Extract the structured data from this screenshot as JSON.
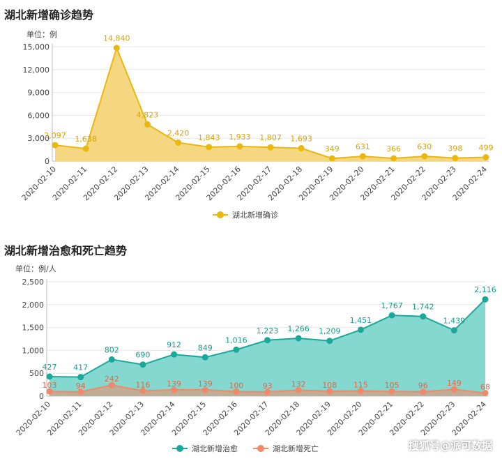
{
  "charts": [
    {
      "title": "湖北新增确诊趋势",
      "unit": "单位：例",
      "chart_data": {
        "type": "area",
        "categories": [
          "2020-02-10",
          "2020-02-11",
          "2020-02-12",
          "2020-02-13",
          "2020-02-14",
          "2020-02-15",
          "2020-02-16",
          "2020-02-17",
          "2020-02-18",
          "2020-02-19",
          "2020-02-20",
          "2020-02-21",
          "2020-02-22",
          "2020-02-23",
          "2020-02-24"
        ],
        "yticks": [
          0,
          3000,
          6000,
          9000,
          12000,
          15000
        ],
        "ytick_labels": [
          "0",
          "3,000",
          "6,000",
          "9,000",
          "12,000",
          "15,000"
        ],
        "ylim": [
          0,
          15000
        ],
        "series": [
          {
            "name": "湖北新增确诊",
            "values": [
              2097,
              1638,
              14840,
              4823,
              2420,
              1843,
              1933,
              1807,
              1693,
              349,
              631,
              366,
              630,
              398,
              499
            ],
            "labels": [
              "2,097",
              "1,638",
              "14,840",
              "4,823",
              "2,420",
              "1,843",
              "1,933",
              "1,807",
              "1,693",
              "349",
              "631",
              "366",
              "630",
              "398",
              "499"
            ],
            "line_color": "#E8B80E",
            "fill_color": "#F5D57A",
            "label_color": "#D9A400"
          }
        ],
        "legend": "bottom-center"
      }
    },
    {
      "title": "湖北新增治愈和死亡趋势",
      "unit": "单位：例/人",
      "chart_data": {
        "type": "area",
        "categories": [
          "2020-02-10",
          "2020-02-11",
          "2020-02-12",
          "2020-02-13",
          "2020-02-14",
          "2020-02-15",
          "2020-02-16",
          "2020-02-17",
          "2020-02-18",
          "2020-02-19",
          "2020-02-20",
          "2020-02-21",
          "2020-02-22",
          "2020-02-23",
          "2020-02-24"
        ],
        "yticks": [
          0,
          500,
          1000,
          1500,
          2000,
          2500
        ],
        "ytick_labels": [
          "0",
          "500",
          "1,000",
          "1,500",
          "2,000",
          "2,500"
        ],
        "ylim": [
          0,
          2500
        ],
        "series": [
          {
            "name": "湖北新增治愈",
            "values": [
              427,
              417,
              802,
              690,
              912,
              849,
              1016,
              1223,
              1266,
              1209,
              1451,
              1767,
              1742,
              1439,
              2116
            ],
            "labels": [
              "427",
              "417",
              "802",
              "690",
              "912",
              "849",
              "1,016",
              "1,223",
              "1,266",
              "1,209",
              "1,451",
              "1,767",
              "1,742",
              "1,439",
              "2,116"
            ],
            "line_color": "#1BA89B",
            "fill_color": "#7ED6CD",
            "label_color": "#139C8F"
          },
          {
            "name": "湖北新增死亡",
            "values": [
              103,
              94,
              242,
              116,
              139,
              139,
              100,
              93,
              132,
              108,
              115,
              105,
              96,
              149,
              68
            ],
            "labels": [
              "103",
              "94",
              "242",
              "116",
              "139",
              "139",
              "100",
              "93",
              "132",
              "108",
              "115",
              "105",
              "96",
              "149",
              "68"
            ],
            "line_color": "#F0896A",
            "fill_color": "#C7A88F",
            "label_color": "#D9694A"
          }
        ],
        "legend": "bottom-center"
      }
    }
  ],
  "watermark": "搜狐号@派可数据"
}
